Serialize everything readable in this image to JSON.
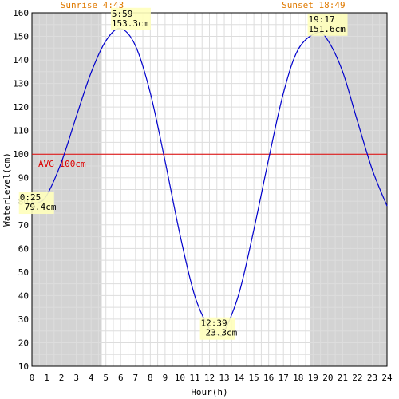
{
  "chart_data": {
    "type": "line",
    "xlabel": "Hour(h)",
    "ylabel": "WaterLevel(cm)",
    "xlim": [
      0,
      24
    ],
    "ylim": [
      10,
      160
    ],
    "x_ticks": [
      "0",
      "1",
      "2",
      "3",
      "4",
      "5",
      "6",
      "7",
      "8",
      "9",
      "10",
      "11",
      "12",
      "13",
      "14",
      "15",
      "16",
      "17",
      "18",
      "19",
      "20",
      "21",
      "22",
      "23",
      "24"
    ],
    "y_ticks": [
      "10",
      "20",
      "30",
      "40",
      "50",
      "60",
      "70",
      "80",
      "90",
      "100",
      "110",
      "120",
      "130",
      "140",
      "150",
      "160"
    ],
    "grid": true,
    "sunrise": {
      "label": "Sunrise 4:43",
      "hour": 4.717
    },
    "sunset": {
      "label": "Sunset 18:49",
      "hour": 18.817
    },
    "average": {
      "label": "AVG 100cm",
      "value": 100
    },
    "extrema": [
      {
        "time": "0:25",
        "level": "79.4cm",
        "x": 0.417,
        "y": 79.4
      },
      {
        "time": "5:59",
        "level": "153.3cm",
        "x": 5.983,
        "y": 153.3
      },
      {
        "time": "12:39",
        "level": "23.3cm",
        "x": 12.65,
        "y": 23.3
      },
      {
        "time": "19:17",
        "level": "151.6cm",
        "x": 19.283,
        "y": 151.6
      }
    ],
    "series": [
      {
        "values": [
          {
            "x": 0,
            "y": 79.6
          },
          {
            "x": 0.417,
            "y": 79.4
          },
          {
            "x": 1,
            "y": 82.5
          },
          {
            "x": 2,
            "y": 96.7
          },
          {
            "x": 3,
            "y": 116.0
          },
          {
            "x": 4,
            "y": 134.6
          },
          {
            "x": 5,
            "y": 148.1
          },
          {
            "x": 5.983,
            "y": 153.3
          },
          {
            "x": 7,
            "y": 146.0
          },
          {
            "x": 8,
            "y": 126.0
          },
          {
            "x": 9,
            "y": 97.0
          },
          {
            "x": 10,
            "y": 66.0
          },
          {
            "x": 11,
            "y": 40.0
          },
          {
            "x": 12,
            "y": 26.0
          },
          {
            "x": 12.65,
            "y": 23.3
          },
          {
            "x": 13,
            "y": 24.7
          },
          {
            "x": 14,
            "y": 41.0
          },
          {
            "x": 15,
            "y": 68.0
          },
          {
            "x": 16,
            "y": 98.0
          },
          {
            "x": 17,
            "y": 126.0
          },
          {
            "x": 18,
            "y": 144.5
          },
          {
            "x": 19.283,
            "y": 151.6
          },
          {
            "x": 20,
            "y": 148.3
          },
          {
            "x": 21,
            "y": 135.0
          },
          {
            "x": 22,
            "y": 114.0
          },
          {
            "x": 23,
            "y": 93.5
          },
          {
            "x": 24,
            "y": 78.0
          }
        ]
      }
    ],
    "colors": {
      "line": "#0000cc",
      "average": "#dd0000",
      "night": "#d3d3d3",
      "grid": "#dddddd",
      "sun_text": "#e07a00",
      "label_bg": "#ffffbb"
    }
  }
}
